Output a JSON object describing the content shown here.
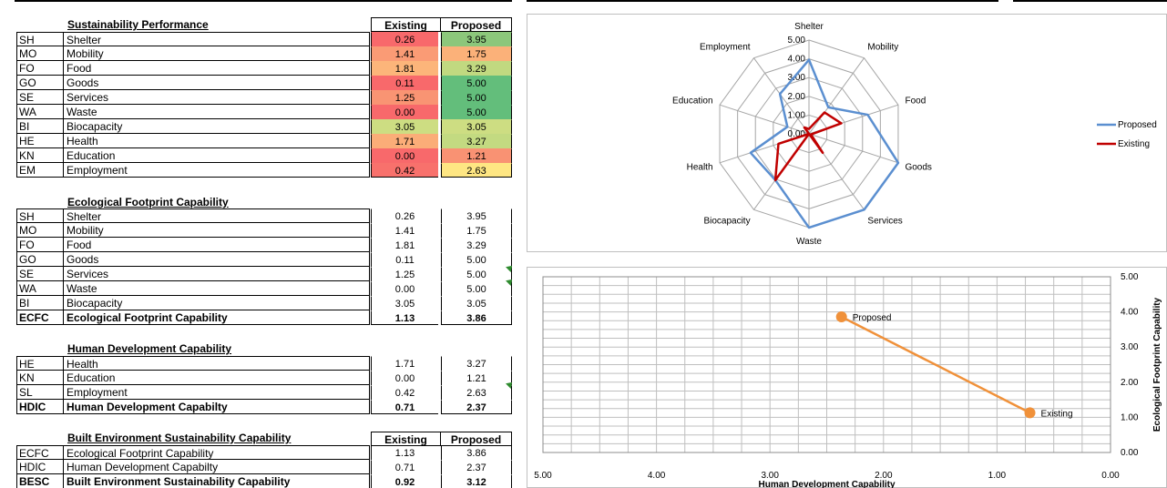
{
  "colors": {
    "proposed_line": "#5b8fd0",
    "existing_line": "#c00000",
    "xy_line": "#f0913a",
    "proposed_label": "#1f4e99",
    "existing_label": "#c0392b"
  },
  "sustainability": {
    "title": "Sustainability Performance",
    "col_existing": "Existing",
    "col_proposed": "Proposed",
    "rows": [
      {
        "code": "SH",
        "name": "Shelter",
        "existing": "0.26",
        "proposed": "3.95",
        "ec": "#f8696b",
        "pc": "#8cc77b"
      },
      {
        "code": "MO",
        "name": "Mobility",
        "existing": "1.41",
        "proposed": "1.75",
        "ec": "#fa9b75",
        "pc": "#fbb179"
      },
      {
        "code": "FO",
        "name": "Food",
        "existing": "1.81",
        "proposed": "3.29",
        "ec": "#fcb57a",
        "pc": "#c1d980"
      },
      {
        "code": "GO",
        "name": "Goods",
        "existing": "0.11",
        "proposed": "5.00",
        "ec": "#f8696b",
        "pc": "#63be7b"
      },
      {
        "code": "SE",
        "name": "Services",
        "existing": "1.25",
        "proposed": "5.00",
        "ec": "#f99473",
        "pc": "#63be7b"
      },
      {
        "code": "WA",
        "name": "Waste",
        "existing": "0.00",
        "proposed": "5.00",
        "ec": "#f8696b",
        "pc": "#63be7b"
      },
      {
        "code": "BI",
        "name": "Biocapacity",
        "existing": "3.05",
        "proposed": "3.05",
        "ec": "#cddd82",
        "pc": "#cddd82"
      },
      {
        "code": "HE",
        "name": "Health",
        "existing": "1.71",
        "proposed": "3.27",
        "ec": "#fbad78",
        "pc": "#c3da81"
      },
      {
        "code": "KN",
        "name": "Education",
        "existing": "0.00",
        "proposed": "1.21",
        "ec": "#f8696b",
        "pc": "#f99273"
      },
      {
        "code": "EM",
        "name": "Employment",
        "existing": "0.42",
        "proposed": "2.63",
        "ec": "#f8716c",
        "pc": "#fee683"
      }
    ]
  },
  "ecological": {
    "title": "Ecological Footprint Capability",
    "rows": [
      {
        "code": "SH",
        "name": "Shelter",
        "existing": "0.26",
        "proposed": "3.95"
      },
      {
        "code": "MO",
        "name": "Mobility",
        "existing": "1.41",
        "proposed": "1.75"
      },
      {
        "code": "FO",
        "name": "Food",
        "existing": "1.81",
        "proposed": "3.29"
      },
      {
        "code": "GO",
        "name": "Goods",
        "existing": "0.11",
        "proposed": "5.00"
      },
      {
        "code": "SE",
        "name": "Services",
        "existing": "1.25",
        "proposed": "5.00"
      },
      {
        "code": "WA",
        "name": "Waste",
        "existing": "0.00",
        "proposed": "5.00"
      },
      {
        "code": "BI",
        "name": "Biocapacity",
        "existing": "3.05",
        "proposed": "3.05"
      },
      {
        "code": "ECFC",
        "name": "Ecological Footprint Capability",
        "existing": "1.13",
        "proposed": "3.86",
        "bold": true
      }
    ]
  },
  "human": {
    "title": "Human Development Capability",
    "rows": [
      {
        "code": "HE",
        "name": "Health",
        "existing": "1.71",
        "proposed": "3.27"
      },
      {
        "code": "KN",
        "name": "Education",
        "existing": "0.00",
        "proposed": "1.21"
      },
      {
        "code": "SL",
        "name": "Employment",
        "existing": "0.42",
        "proposed": "2.63"
      },
      {
        "code": "HDIC",
        "name": "Human Development Capabilty",
        "existing": "0.71",
        "proposed": "2.37",
        "bold": true
      }
    ]
  },
  "built": {
    "title": "Built Environment Sustainability Capability",
    "col_existing": "Existing",
    "col_proposed": "Proposed",
    "rows": [
      {
        "code": "ECFC",
        "name": "Ecological Footprint Capability",
        "existing": "1.13",
        "proposed": "3.86"
      },
      {
        "code": "HDIC",
        "name": "Human Development Capabilty",
        "existing": "0.71",
        "proposed": "2.37"
      },
      {
        "code": "BESC",
        "name": "Built Environment Sustainability Capability",
        "existing": "0.92",
        "proposed": "3.12",
        "bold": true
      }
    ]
  },
  "chart_data": [
    {
      "type": "radar",
      "categories": [
        "Shelter",
        "Mobility",
        "Food",
        "Goods",
        "Services",
        "Waste",
        "Biocapacity",
        "Health",
        "Education",
        "Employment"
      ],
      "tick_labels": [
        "0.00",
        "1.00",
        "2.00",
        "3.00",
        "4.00",
        "5.00"
      ],
      "ylim": [
        0,
        5
      ],
      "legend_position": "right",
      "series": [
        {
          "name": "Proposed",
          "values": [
            3.95,
            1.75,
            3.29,
            5.0,
            5.0,
            5.0,
            3.05,
            3.27,
            1.21,
            2.63
          ]
        },
        {
          "name": "Existing",
          "values": [
            0.26,
            1.41,
            1.81,
            0.11,
            1.25,
            0.0,
            3.05,
            1.71,
            0.0,
            0.42
          ]
        }
      ]
    },
    {
      "type": "scatter",
      "xlabel": "Human Development Capability",
      "ylabel": "Ecological Footprint Capability",
      "xlim": [
        5,
        0
      ],
      "ylim": [
        0,
        5
      ],
      "x_ticks": [
        "5.00",
        "4.00",
        "3.00",
        "2.00",
        "1.00",
        "0.00"
      ],
      "y_ticks": [
        "0.00",
        "1.00",
        "2.00",
        "3.00",
        "4.00",
        "5.00"
      ],
      "points": [
        {
          "label": "Proposed",
          "x": 2.37,
          "y": 3.86
        },
        {
          "label": "Existing",
          "x": 0.71,
          "y": 1.13
        }
      ]
    }
  ]
}
